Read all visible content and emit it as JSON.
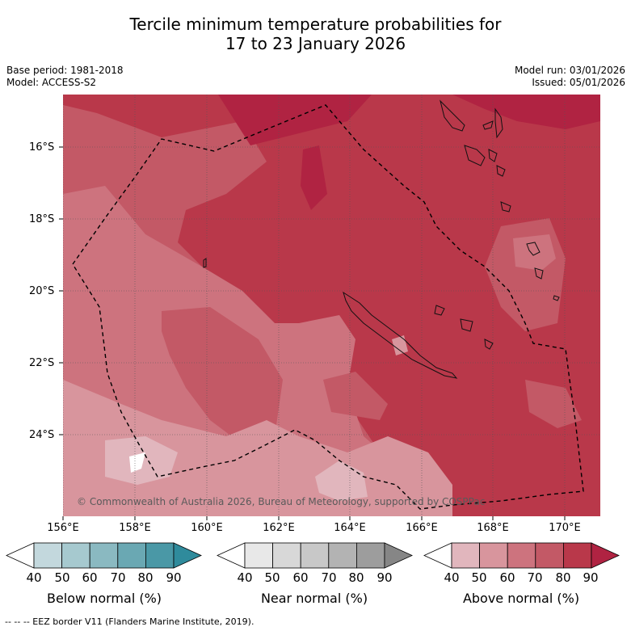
{
  "title": {
    "line1": "Tercile minimum temperature probabilities for",
    "line2": "17 to 23 January 2026"
  },
  "meta": {
    "base_period": "Base period: 1981-2018",
    "model": "Model: ACCESS-S2",
    "model_run": "Model run: 03/01/2026",
    "issued": "Issued: 05/01/2026"
  },
  "map": {
    "lat_labels": [
      "16°S",
      "18°S",
      "20°S",
      "22°S",
      "24°S"
    ],
    "lon_labels": [
      "156°E",
      "158°E",
      "160°E",
      "162°E",
      "164°E",
      "166°E",
      "168°E",
      "170°E"
    ],
    "copyright": "© Commonwealth of Australia 2026, Bureau of Meteorology, supported by COSPPac"
  },
  "colorbars": [
    {
      "caption": "Below normal (%)",
      "ticks": [
        "40",
        "50",
        "60",
        "70",
        "80",
        "90"
      ],
      "colors": [
        "#c3d8dd",
        "#a6c9cf",
        "#8ab9c1",
        "#6aa8b3",
        "#4a98a6",
        "#2f8b9c"
      ]
    },
    {
      "caption": "Near normal (%)",
      "ticks": [
        "40",
        "50",
        "60",
        "70",
        "80",
        "90"
      ],
      "colors": [
        "#e8e8e8",
        "#d8d8d8",
        "#c8c8c8",
        "#b3b3b3",
        "#9d9d9d",
        "#868686"
      ]
    },
    {
      "caption": "Above normal (%)",
      "ticks": [
        "40",
        "50",
        "60",
        "70",
        "80",
        "90"
      ],
      "colors": [
        "#e1b6bd",
        "#d8959d",
        "#cd737e",
        "#c35966",
        "#b9384a",
        "#b02342"
      ]
    }
  ],
  "footnote": "--  --  -- EEZ border V11 (Flanders Marine Institute, 2019)."
}
